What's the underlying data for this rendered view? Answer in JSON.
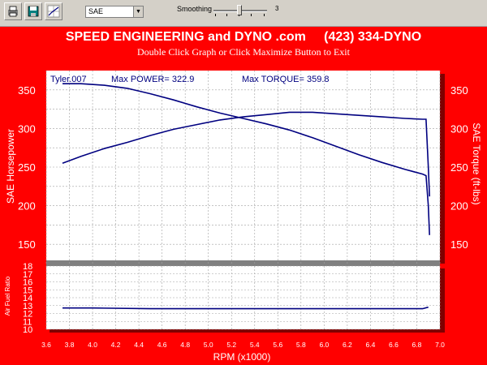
{
  "toolbar": {
    "buttons": [
      "print-icon",
      "save-icon",
      "graph-icon"
    ],
    "correction_select": "SAE",
    "smoothing_label": "Smoothing",
    "smoothing_value": "3"
  },
  "header": {
    "title": "SPEED ENGINEERING and DYNO .com     (423) 334-DYNO",
    "subtitle": "Double Click Graph or Click Maximize Button to Exit"
  },
  "legend": {
    "run": "Tyler.007",
    "max_power": "Max POWER= 322.9",
    "max_torque": "Max TORQUE= 359.8"
  },
  "chart_data": [
    {
      "type": "line",
      "xlabel": "RPM (x1000)",
      "ylabel_left": "SAE Horsepower",
      "ylabel_right": "SAE Torque (ft-lbs)",
      "xlim": [
        3.6,
        7.0
      ],
      "ylim": [
        125,
        375
      ],
      "yticks": [
        150,
        200,
        250,
        300,
        350
      ],
      "xticks": [
        "3.6",
        "3.8",
        "4.0",
        "4.2",
        "4.4",
        "4.6",
        "4.8",
        "5.0",
        "5.2",
        "5.4",
        "5.6",
        "5.8",
        "6.0",
        "6.2",
        "6.4",
        "6.6",
        "6.8",
        "7.0"
      ],
      "grid": true,
      "series": [
        {
          "name": "SAE Horsepower",
          "x": [
            3.74,
            3.9,
            4.1,
            4.3,
            4.5,
            4.7,
            4.9,
            5.1,
            5.3,
            5.5,
            5.7,
            5.9,
            6.1,
            6.3,
            6.5,
            6.7,
            6.85,
            6.88,
            6.9,
            6.91
          ],
          "values": [
            255,
            264,
            274,
            282,
            291,
            299,
            305,
            311,
            315,
            318,
            321,
            321,
            319,
            317,
            315,
            313,
            312,
            312,
            250,
            212
          ]
        },
        {
          "name": "SAE Torque (ft-lbs)",
          "x": [
            3.74,
            3.9,
            4.1,
            4.3,
            4.5,
            4.7,
            4.9,
            5.1,
            5.3,
            5.5,
            5.7,
            5.9,
            6.1,
            6.3,
            6.5,
            6.7,
            6.85,
            6.88,
            6.9,
            6.91
          ],
          "values": [
            358,
            358,
            356,
            352,
            345,
            337,
            328,
            320,
            313,
            306,
            298,
            288,
            277,
            266,
            256,
            247,
            241,
            239,
            200,
            162
          ]
        }
      ]
    },
    {
      "type": "line",
      "ylabel": "Air Fuel Ratio",
      "xlim": [
        3.6,
        7.0
      ],
      "ylim": [
        10,
        18
      ],
      "yticks": [
        "10",
        "11",
        "12",
        "13",
        "14",
        "15",
        "16",
        "17",
        "18"
      ],
      "grid": true,
      "series": [
        {
          "name": "Air Fuel Ratio",
          "x": [
            3.74,
            4.0,
            4.5,
            5.0,
            5.5,
            6.0,
            6.5,
            6.85,
            6.9
          ],
          "values": [
            12.7,
            12.7,
            12.6,
            12.6,
            12.6,
            12.6,
            12.6,
            12.6,
            12.8
          ]
        }
      ]
    }
  ],
  "colors": {
    "background": "#ff0000",
    "line": "#000080",
    "plot": "#ffffff"
  }
}
